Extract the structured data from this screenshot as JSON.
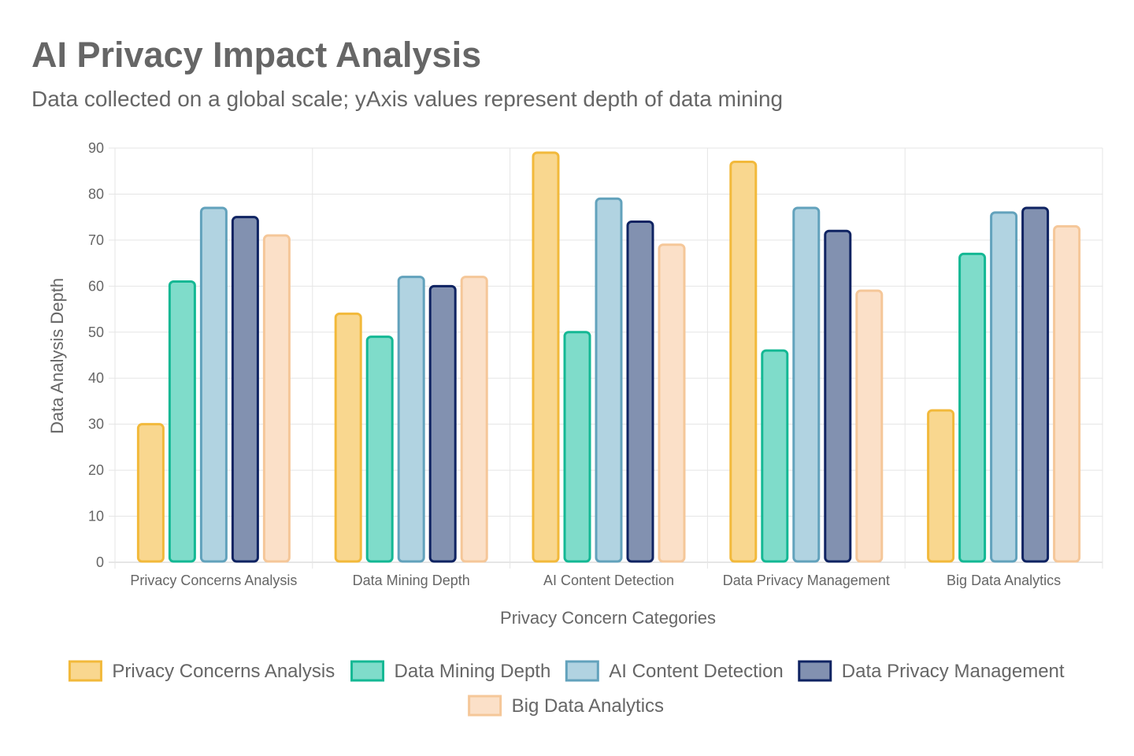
{
  "chart_data": {
    "type": "bar",
    "title": "AI Privacy Impact Analysis",
    "subtitle": "Data collected on a global scale; yAxis values represent depth of data mining",
    "xlabel": "Privacy Concern Categories",
    "ylabel": "Data Analysis Depth",
    "ylim": [
      0,
      90
    ],
    "ytick_step": 10,
    "grid": true,
    "legend_position": "bottom",
    "categories": [
      "Privacy Concerns Analysis",
      "Data Mining Depth",
      "AI Content Detection",
      "Data Privacy Management",
      "Big Data Analytics"
    ],
    "series": [
      {
        "name": "Privacy Concerns Analysis",
        "values": [
          30,
          54,
          89,
          87,
          33
        ],
        "fill": "#F9D78F",
        "stroke": "#F2B93B"
      },
      {
        "name": "Data Mining Depth",
        "values": [
          61,
          49,
          50,
          46,
          67
        ],
        "fill": "#7FDCCA",
        "stroke": "#14B894"
      },
      {
        "name": "AI Content Detection",
        "values": [
          77,
          62,
          79,
          77,
          76
        ],
        "fill": "#B1D3E1",
        "stroke": "#62A2BC"
      },
      {
        "name": "Data Privacy Management",
        "values": [
          75,
          60,
          74,
          72,
          77
        ],
        "fill": "#8291B0",
        "stroke": "#0F2362"
      },
      {
        "name": "Big Data Analytics",
        "values": [
          71,
          62,
          69,
          59,
          73
        ],
        "fill": "#FBE0C8",
        "stroke": "#F5C799"
      }
    ]
  }
}
